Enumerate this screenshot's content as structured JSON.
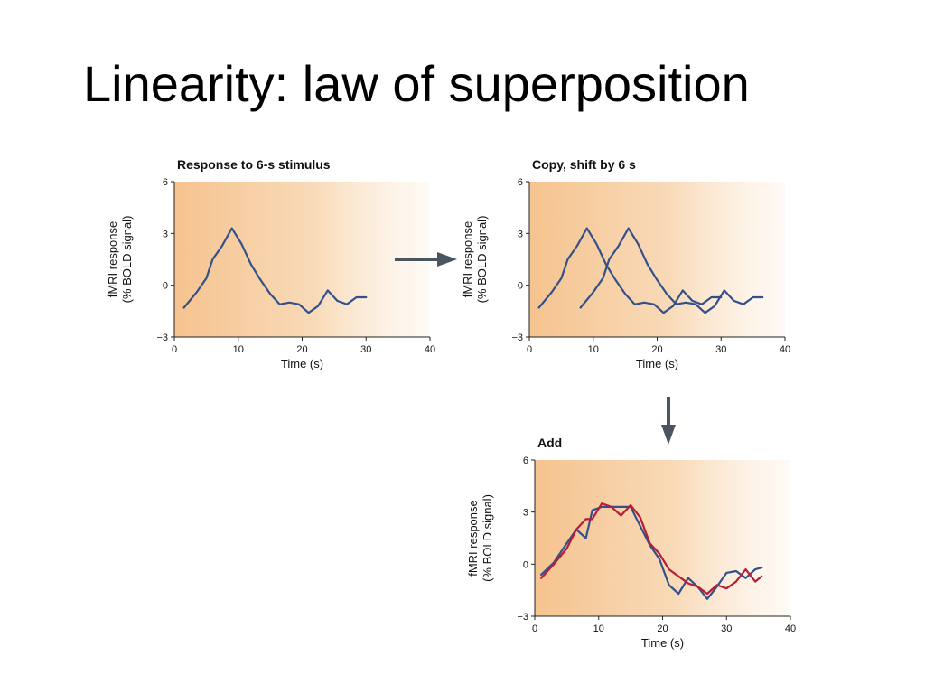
{
  "slide": {
    "title": "Linearity: law of superposition"
  },
  "colors": {
    "series_blue": "#33508a",
    "series_red": "#b81c36",
    "arrow": "#4a5560",
    "plot_bg": "#f5c38e"
  },
  "arrow_icons": [
    "arrow-right-icon",
    "arrow-down-icon"
  ],
  "chart_data": [
    {
      "type": "line",
      "title": "Response to 6-s stimulus",
      "xlabel": "Time (s)",
      "ylabel": [
        "fMRI response",
        "(% BOLD signal)"
      ],
      "xlim": [
        0,
        40
      ],
      "ylim": [
        -3,
        6
      ],
      "xticks": [
        0,
        10,
        20,
        30,
        40
      ],
      "yticks": [
        6,
        3,
        0,
        -3
      ],
      "ytick_labels": [
        "6",
        "3",
        "0",
        "−3"
      ],
      "series": [
        {
          "color": "#33508a",
          "x": [
            1.5,
            3.5,
            5,
            6,
            7.5,
            9,
            10.5,
            12,
            13.5,
            15,
            16.5,
            18,
            19.5,
            21,
            22.5,
            24,
            25.5,
            27,
            28.5,
            30
          ],
          "y": [
            -1.3,
            -0.4,
            0.4,
            1.5,
            2.3,
            3.3,
            2.4,
            1.2,
            0.3,
            -0.5,
            -1.1,
            -1.0,
            -1.1,
            -1.6,
            -1.2,
            -0.3,
            -0.9,
            -1.1,
            -0.7,
            -0.7
          ]
        }
      ]
    },
    {
      "type": "line",
      "title": "Copy, shift by 6 s",
      "xlabel": "Time (s)",
      "ylabel": [
        "fMRI response",
        "(% BOLD signal)"
      ],
      "xlim": [
        0,
        40
      ],
      "ylim": [
        -3,
        6
      ],
      "xticks": [
        0,
        10,
        20,
        30,
        40
      ],
      "yticks": [
        6,
        3,
        0,
        -3
      ],
      "ytick_labels": [
        "6",
        "3",
        "0",
        "−3"
      ],
      "series": [
        {
          "color": "#33508a",
          "x": [
            1.5,
            3.5,
            5,
            6,
            7.5,
            9,
            10.5,
            12,
            13.5,
            15,
            16.5,
            18,
            19.5,
            21,
            22.5,
            24,
            25.5,
            27,
            28.5,
            30
          ],
          "y": [
            -1.3,
            -0.4,
            0.4,
            1.5,
            2.3,
            3.3,
            2.4,
            1.2,
            0.3,
            -0.5,
            -1.1,
            -1.0,
            -1.1,
            -1.6,
            -1.2,
            -0.3,
            -0.9,
            -1.1,
            -0.7,
            -0.7
          ]
        },
        {
          "color": "#33508a",
          "x": [
            8,
            10,
            11.5,
            12.5,
            14,
            15.5,
            17,
            18.5,
            20,
            21.5,
            23,
            24.5,
            26,
            27.5,
            29,
            30.5,
            32,
            33.5,
            35,
            36.5
          ],
          "y": [
            -1.3,
            -0.4,
            0.4,
            1.5,
            2.3,
            3.3,
            2.4,
            1.2,
            0.3,
            -0.5,
            -1.1,
            -1.0,
            -1.1,
            -1.6,
            -1.2,
            -0.3,
            -0.9,
            -1.1,
            -0.7,
            -0.7
          ]
        }
      ]
    },
    {
      "type": "line",
      "title": "Add",
      "xlabel": "Time (s)",
      "ylabel": [
        "fMRI response",
        "(% BOLD signal)"
      ],
      "xlim": [
        0,
        40
      ],
      "ylim": [
        -3,
        6
      ],
      "xticks": [
        0,
        10,
        20,
        30,
        40
      ],
      "yticks": [
        6,
        3,
        0,
        -3
      ],
      "ytick_labels": [
        "6",
        "3",
        "0",
        "−3"
      ],
      "series": [
        {
          "color": "#33508a",
          "x": [
            1,
            3,
            5,
            6.5,
            8,
            9,
            10.5,
            12,
            13.5,
            15,
            16.5,
            18,
            19.5,
            21,
            22.5,
            24,
            25.5,
            27,
            28.5,
            30,
            31.5,
            33,
            34.5,
            35.5
          ],
          "y": [
            -0.6,
            0.1,
            1.2,
            2.0,
            1.5,
            3.1,
            3.3,
            3.3,
            3.3,
            3.3,
            2.2,
            1.1,
            0.3,
            -1.2,
            -1.7,
            -0.8,
            -1.3,
            -2.0,
            -1.3,
            -0.5,
            -0.4,
            -0.8,
            -0.3,
            -0.2
          ]
        },
        {
          "color": "#b81c36",
          "x": [
            1,
            3,
            5,
            6.5,
            8,
            9,
            10.5,
            12,
            13.5,
            15,
            16.5,
            18,
            19.5,
            21,
            22.5,
            24,
            25.5,
            27,
            28.5,
            30,
            31.5,
            33,
            34.5,
            35.5
          ],
          "y": [
            -0.8,
            0.0,
            0.9,
            2.0,
            2.6,
            2.6,
            3.5,
            3.3,
            2.8,
            3.4,
            2.7,
            1.2,
            0.6,
            -0.3,
            -0.7,
            -1.1,
            -1.3,
            -1.7,
            -1.2,
            -1.4,
            -1.0,
            -0.3,
            -1.0,
            -0.7
          ]
        }
      ]
    }
  ]
}
